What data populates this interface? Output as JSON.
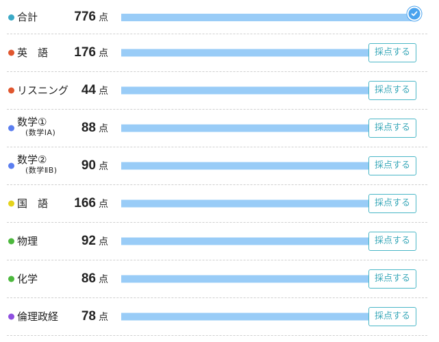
{
  "rows": [
    {
      "id": "total",
      "label": "合計",
      "score": "776",
      "unit": "点",
      "color": "#3ba9c6",
      "fill": 1.0,
      "has_button": false
    },
    {
      "id": "english",
      "label": "英　語",
      "score": "176",
      "unit": "点",
      "color": "#e0562e",
      "fill": 0.92,
      "has_button": true
    },
    {
      "id": "listening",
      "label": "リスニング",
      "score": "44",
      "unit": "点",
      "color": "#e0562e",
      "fill": 0.92,
      "has_button": true
    },
    {
      "id": "math1",
      "label": "数学①",
      "sub": "(数学ⅠA)",
      "score": "88",
      "unit": "点",
      "color": "#5b7ef0",
      "fill": 0.92,
      "has_button": true
    },
    {
      "id": "math2",
      "label": "数学②",
      "sub": "(数学ⅡB)",
      "score": "90",
      "unit": "点",
      "color": "#5b7ef0",
      "fill": 0.92,
      "has_button": true
    },
    {
      "id": "japanese",
      "label": "国　語",
      "score": "166",
      "unit": "点",
      "color": "#e5d31c",
      "fill": 0.92,
      "has_button": true
    },
    {
      "id": "physics",
      "label": "物理",
      "score": "92",
      "unit": "点",
      "color": "#4cb83d",
      "fill": 0.92,
      "has_button": true
    },
    {
      "id": "chemistry",
      "label": "化学",
      "score": "86",
      "unit": "点",
      "color": "#4cb83d",
      "fill": 0.92,
      "has_button": true
    },
    {
      "id": "ethics-politics-economics",
      "label": "倫理政経",
      "score": "78",
      "unit": "点",
      "color": "#8f4fe0",
      "fill": 0.92,
      "has_button": true
    }
  ],
  "button_label": "採点する",
  "icons": {
    "check": "check-circle-icon"
  },
  "colors": {
    "bar": "#99ccf7",
    "check": "#4aa3ee",
    "button": "#48b6c6"
  }
}
